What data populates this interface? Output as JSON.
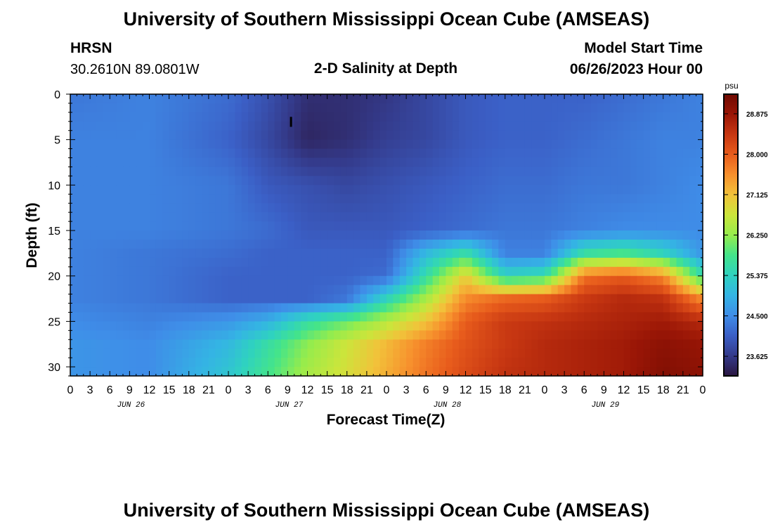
{
  "header": {
    "title": "University of Southern Mississippi Ocean Cube (AMSEAS)",
    "station": "HRSN",
    "coords": "30.2610N  89.0801W",
    "plot_title": "2-D Salinity at Depth",
    "start_label": "Model Start Time",
    "start_value": "06/26/2023 Hour 00"
  },
  "footer": {
    "title": "University of Southern Mississippi Ocean Cube (AMSEAS)"
  },
  "chart_data": {
    "type": "heatmap",
    "title": "2-D Salinity at Depth",
    "xlabel": "Forecast Time(Z)",
    "ylabel": "Depth (ft)",
    "x_ticks": [
      "0",
      "3",
      "6",
      "9",
      "12",
      "15",
      "18",
      "21",
      "0",
      "3",
      "6",
      "9",
      "12",
      "15",
      "18",
      "21",
      "0",
      "3",
      "6",
      "9",
      "12",
      "15",
      "18",
      "21",
      "0",
      "3",
      "6",
      "9",
      "12",
      "15",
      "18",
      "21",
      "0"
    ],
    "day_labels": [
      {
        "label": "JUN 26",
        "hour": 9
      },
      {
        "label": "JUN 27",
        "hour": 33
      },
      {
        "label": "JUN 28",
        "hour": 57
      },
      {
        "label": "JUN 29",
        "hour": 81
      }
    ],
    "xlim": [
      0,
      96
    ],
    "y_ticks": [
      0,
      5,
      10,
      15,
      20,
      25,
      30
    ],
    "ylim": [
      0,
      31
    ],
    "colorbar": {
      "unit": "psu",
      "ticks": [
        "28.875",
        "28.000",
        "27.125",
        "26.250",
        "25.375",
        "24.500",
        "23.625"
      ],
      "range": [
        23.2,
        29.3
      ],
      "colors": [
        "#2a1640",
        "#343a8a",
        "#3b5fc6",
        "#3f8de8",
        "#34b4e4",
        "#2fd2c0",
        "#44e48a",
        "#96ec4c",
        "#cbe53b",
        "#f2c23a",
        "#f7902d",
        "#e85c1c",
        "#c73712",
        "#9a1606",
        "#6e0a02"
      ]
    },
    "salinity_grid": {
      "depths_ft": [
        0,
        5,
        10,
        15,
        17.5,
        20,
        22.5,
        25,
        27.5,
        31
      ],
      "hours": [
        0,
        12,
        24,
        30,
        36,
        42,
        48,
        54,
        60,
        66,
        72,
        78,
        84,
        90,
        96
      ],
      "values": [
        [
          24.3,
          24.4,
          24.2,
          23.9,
          23.5,
          23.5,
          23.6,
          23.8,
          24.0,
          24.1,
          24.1,
          24.1,
          24.2,
          24.3,
          24.4
        ],
        [
          24.4,
          24.4,
          24.1,
          23.8,
          23.4,
          23.5,
          23.7,
          23.8,
          24.0,
          24.1,
          24.1,
          24.2,
          24.3,
          24.4,
          24.4
        ],
        [
          24.4,
          24.4,
          24.3,
          24.0,
          23.9,
          23.8,
          23.9,
          24.0,
          24.1,
          24.2,
          24.2,
          24.3,
          24.3,
          24.4,
          24.5
        ],
        [
          24.4,
          24.4,
          24.3,
          24.2,
          24.0,
          24.0,
          24.0,
          24.1,
          24.2,
          24.3,
          24.3,
          24.4,
          24.5,
          24.5,
          24.5
        ],
        [
          24.4,
          24.3,
          24.2,
          24.1,
          24.1,
          24.1,
          24.1,
          25.0,
          25.6,
          24.4,
          24.4,
          25.6,
          25.8,
          25.4,
          24.6
        ],
        [
          24.4,
          24.3,
          24.1,
          24.1,
          24.1,
          24.1,
          24.2,
          25.6,
          27.0,
          25.4,
          25.6,
          27.8,
          28.0,
          27.6,
          25.6
        ],
        [
          24.4,
          24.3,
          24.1,
          24.1,
          24.1,
          24.3,
          25.4,
          26.4,
          27.6,
          27.9,
          28.0,
          28.4,
          28.6,
          28.5,
          27.6
        ],
        [
          24.5,
          24.4,
          24.6,
          24.9,
          25.6,
          26.0,
          26.5,
          27.1,
          28.0,
          28.4,
          28.5,
          28.6,
          28.7,
          28.8,
          28.6
        ],
        [
          24.6,
          24.5,
          25.0,
          25.6,
          26.2,
          26.7,
          27.2,
          27.7,
          28.1,
          28.4,
          28.6,
          28.7,
          28.8,
          29.0,
          28.9
        ],
        [
          24.6,
          24.5,
          25.2,
          25.8,
          26.4,
          26.8,
          27.3,
          27.8,
          28.2,
          28.5,
          28.6,
          28.7,
          28.8,
          29.1,
          29.0
        ]
      ]
    }
  }
}
